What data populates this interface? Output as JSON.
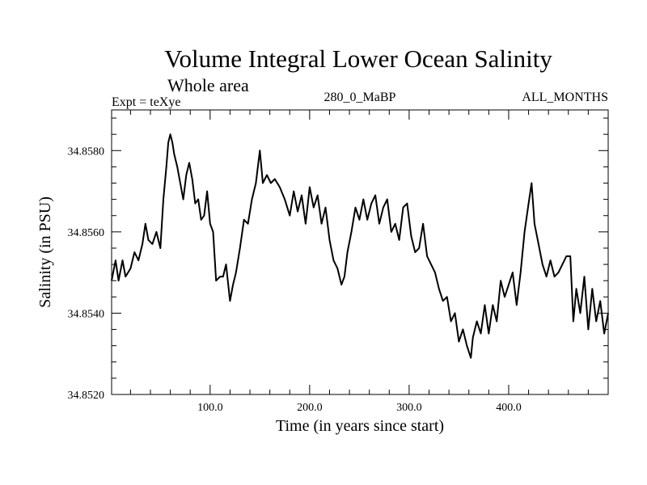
{
  "chart_data": {
    "type": "line",
    "title": "Volume Integral Lower Ocean Salinity",
    "subtitle": "Whole area",
    "left_label": "Expt = teXye",
    "center_label": "280_0_MaBP",
    "right_label": "ALL_MONTHS",
    "xlabel": "Time (in years since start)",
    "ylabel": "Salinity (in PSU)",
    "xlim": [
      1,
      500
    ],
    "ylim": [
      34.852,
      34.859
    ],
    "x_ticks": [
      100,
      200,
      300,
      400
    ],
    "x_tick_labels": [
      "100.0",
      "200.0",
      "300.0",
      "400.0"
    ],
    "y_ticks": [
      34.852,
      34.854,
      34.856,
      34.858
    ],
    "y_tick_labels": [
      "34.8520",
      "34.8540",
      "34.8560",
      "34.8580"
    ],
    "grid": false,
    "series": [
      {
        "x": [
          1,
          5,
          8,
          12,
          15,
          20,
          24,
          28,
          32,
          35,
          38,
          42,
          46,
          50,
          53,
          56,
          58,
          60,
          62,
          64,
          67,
          70,
          73,
          76,
          79,
          82,
          85,
          88,
          91,
          94,
          97,
          100,
          103,
          106,
          110,
          113,
          116,
          120,
          123,
          126,
          130,
          134,
          138,
          142,
          146,
          150,
          153,
          157,
          161,
          165,
          170,
          175,
          180,
          184,
          188,
          192,
          196,
          200,
          204,
          208,
          212,
          216,
          220,
          224,
          228,
          232,
          235,
          238,
          242,
          246,
          250,
          254,
          258,
          262,
          266,
          270,
          274,
          278,
          282,
          286,
          290,
          294,
          298,
          302,
          306,
          310,
          314,
          318,
          322,
          326,
          330,
          334,
          338,
          342,
          346,
          350,
          354,
          358,
          362,
          364,
          368,
          372,
          376,
          380,
          384,
          388,
          392,
          396,
          400,
          404,
          408,
          412,
          416,
          420,
          423,
          426,
          430,
          434,
          438,
          442,
          446,
          450,
          454,
          458,
          462,
          465,
          468,
          472,
          476,
          480,
          484,
          488,
          492,
          496,
          500
        ],
        "y": [
          34.8548,
          34.8553,
          34.8548,
          34.8553,
          34.8549,
          34.8551,
          34.8555,
          34.8553,
          34.8557,
          34.8562,
          34.8558,
          34.8557,
          34.856,
          34.8556,
          34.8568,
          34.8576,
          34.8582,
          34.8584,
          34.8582,
          34.8579,
          34.8576,
          34.8572,
          34.8568,
          34.8574,
          34.8577,
          34.8573,
          34.8567,
          34.8568,
          34.8563,
          34.8564,
          34.857,
          34.8562,
          34.856,
          34.8548,
          34.8549,
          34.8549,
          34.8552,
          34.8543,
          34.8547,
          34.855,
          34.8556,
          34.8563,
          34.8562,
          34.8568,
          34.8572,
          34.858,
          34.8572,
          34.8574,
          34.8572,
          34.8573,
          34.8571,
          34.8568,
          34.8564,
          34.857,
          34.8565,
          34.8569,
          34.8562,
          34.8571,
          34.8566,
          34.8569,
          34.8562,
          34.8566,
          34.8558,
          34.8553,
          34.8551,
          34.8547,
          34.8549,
          34.8555,
          34.856,
          34.8566,
          34.8563,
          34.8568,
          34.8563,
          34.8567,
          34.8569,
          34.8562,
          34.8566,
          34.8568,
          34.856,
          34.8562,
          34.8558,
          34.8566,
          34.8567,
          34.8559,
          34.8555,
          34.8556,
          34.8562,
          34.8554,
          34.8552,
          34.855,
          34.8546,
          34.8543,
          34.8544,
          34.8538,
          34.854,
          34.8533,
          34.8536,
          34.8532,
          34.8529,
          34.8534,
          34.8538,
          34.8535,
          34.8542,
          34.8535,
          34.8542,
          34.8538,
          34.8548,
          34.8544,
          34.8547,
          34.855,
          34.8542,
          34.855,
          34.856,
          34.8567,
          34.8572,
          34.8562,
          34.8557,
          34.8552,
          34.8549,
          34.8553,
          34.8549,
          34.855,
          34.8552,
          34.8554,
          34.8554,
          34.8538,
          34.8546,
          34.854,
          34.8549,
          34.8536,
          34.8546,
          34.8538,
          34.8543,
          34.8535,
          34.854
        ]
      }
    ]
  }
}
